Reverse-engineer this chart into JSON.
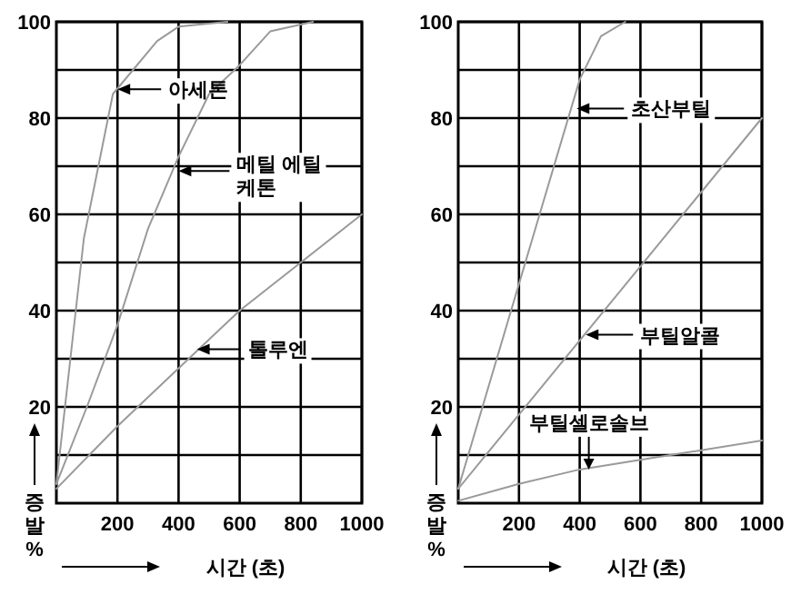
{
  "chart_data": [
    {
      "type": "line",
      "xlabel": "시간 (초)",
      "ylabel": "증발 %",
      "xlim": [
        0,
        1000
      ],
      "ylim": [
        0,
        100
      ],
      "xticks": [
        200,
        400,
        600,
        800,
        1000
      ],
      "yticks": [
        {
          "value": 10,
          "label": null
        },
        20,
        {
          "value": 30,
          "label": null
        },
        40,
        {
          "value": 50,
          "label": null
        },
        60,
        {
          "value": 70,
          "label": null
        },
        80,
        {
          "value": 90,
          "label": null
        },
        100
      ],
      "grid": true,
      "line_style": "solid",
      "marker": "none",
      "series": [
        {
          "color": "#9a9a9a",
          "x": [
            0,
            90,
            185,
            330,
            400,
            560
          ],
          "values": [
            4,
            55,
            85,
            96,
            99,
            100
          ]
        },
        {
          "color": "#9a9a9a",
          "x": [
            0,
            100,
            200,
            300,
            400,
            500,
            600,
            700,
            840
          ],
          "values": [
            4,
            20,
            37,
            57,
            72,
            85,
            91,
            98,
            100
          ]
        },
        {
          "color": "#9a9a9a",
          "x": [
            0,
            200,
            400,
            600,
            1000
          ],
          "values": [
            3,
            16,
            28,
            40,
            60
          ]
        }
      ],
      "annotations": [
        {
          "text": "아세톤",
          "x": 200,
          "y": 86
        },
        {
          "text": "메틸 에틸\n케톤",
          "x": 400,
          "y": 69
        },
        {
          "text": "톨루엔",
          "x": 460,
          "y": 32
        }
      ]
    },
    {
      "type": "line",
      "xlabel": "시간 (초)",
      "ylabel": "증발 %",
      "xlim": [
        0,
        1000
      ],
      "ylim": [
        0,
        100
      ],
      "xticks": [
        200,
        400,
        600,
        800,
        1000
      ],
      "yticks": [
        {
          "value": 10,
          "label": null
        },
        20,
        {
          "value": 30,
          "label": null
        },
        40,
        {
          "value": 50,
          "label": null
        },
        60,
        {
          "value": 70,
          "label": null
        },
        80,
        {
          "value": 90,
          "label": null
        },
        100
      ],
      "grid": true,
      "line_style": "solid",
      "marker": "none",
      "series": [
        {
          "color": "#9a9a9a",
          "x": [
            0,
            268,
            400,
            470,
            550
          ],
          "values": [
            3,
            60,
            88,
            97,
            100
          ]
        },
        {
          "color": "#9a9a9a",
          "x": [
            0,
            1000
          ],
          "values": [
            3,
            80
          ]
        },
        {
          "color": "#9a9a9a",
          "x": [
            0,
            200,
            400,
            600,
            1000
          ],
          "values": [
            0.5,
            4,
            7,
            9,
            13
          ]
        }
      ],
      "annotations": [
        {
          "text": "초산부틸",
          "x": 390,
          "y": 82
        },
        {
          "text": "부틸알콜",
          "x": 420,
          "y": 35
        },
        {
          "text": "부틸셀로솔브",
          "x": 430,
          "y": 7
        }
      ]
    }
  ]
}
